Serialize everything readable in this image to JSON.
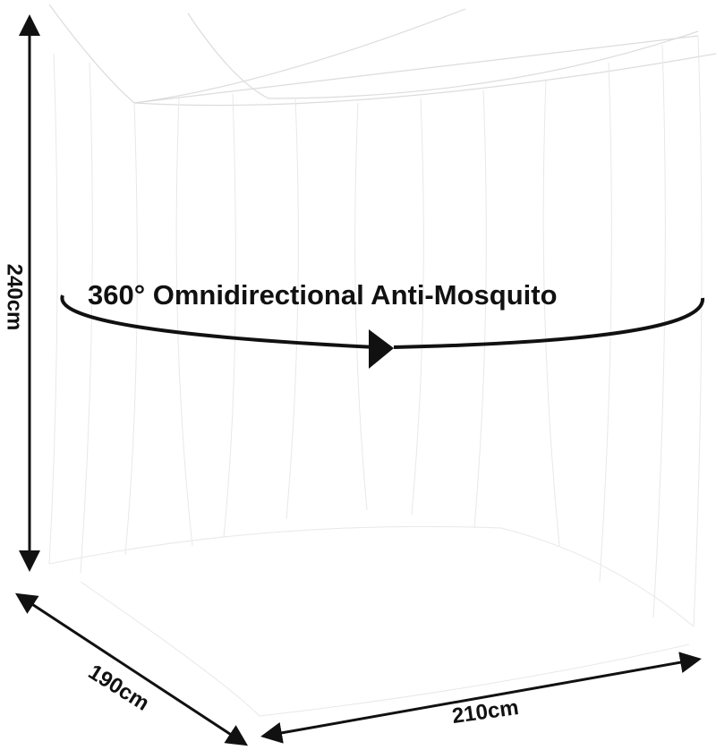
{
  "product": "mosquito net",
  "dimensions": {
    "height": "240cm",
    "depth": "190cm",
    "width": "210cm"
  },
  "headline": "360° Omnidirectional Anti-Mosquito",
  "colors": {
    "annotation": "#111111",
    "net": "#e6e6e6",
    "background": "#ffffff"
  }
}
